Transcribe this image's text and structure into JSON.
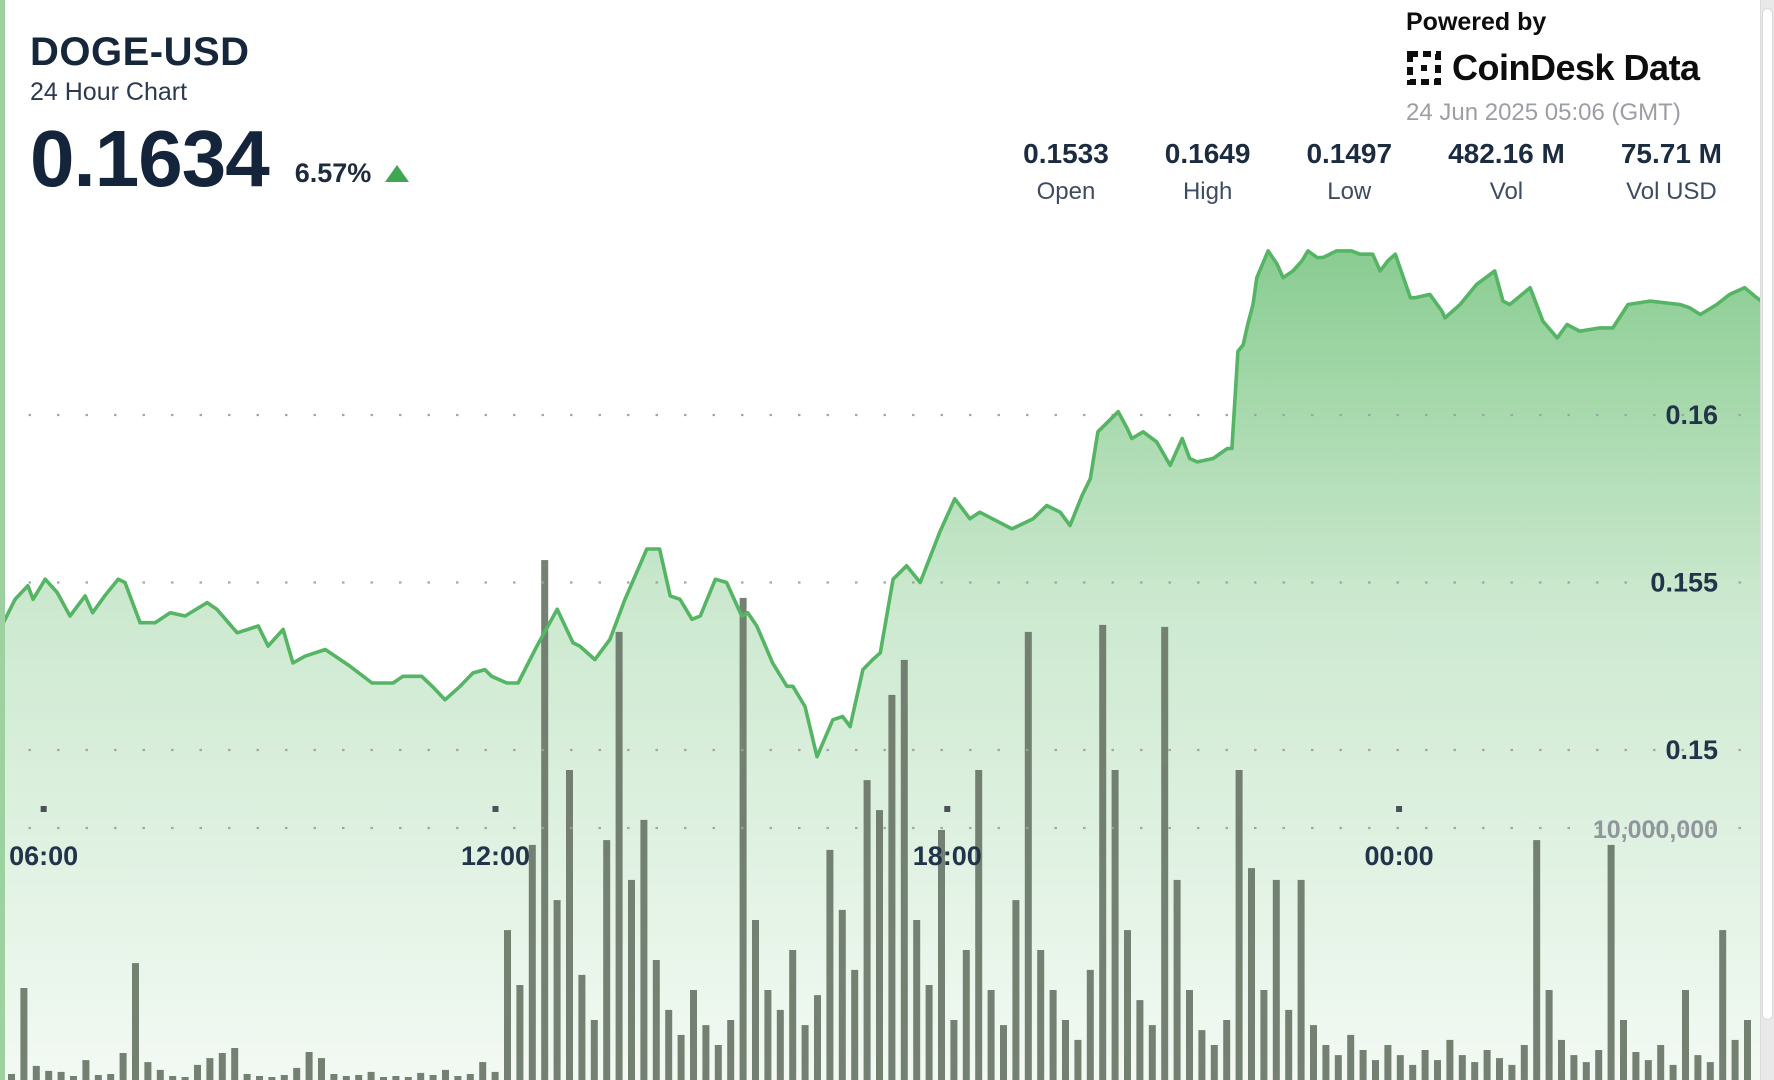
{
  "header": {
    "symbol": "DOGE-USD",
    "subtitle": "24 Hour Chart",
    "price": "0.1634",
    "change_percent": "6.57%",
    "change_direction": "up",
    "powered_by": "Powered by",
    "brand": "CoinDesk Data",
    "timestamp": "24 Jun 2025 05:06 (GMT)"
  },
  "stats": [
    {
      "value": "0.1533",
      "label": "Open"
    },
    {
      "value": "0.1649",
      "label": "High"
    },
    {
      "value": "0.1497",
      "label": "Low"
    },
    {
      "value": "482.16 M",
      "label": "Vol"
    },
    {
      "value": "75.71 M",
      "label": "Vol USD"
    }
  ],
  "colors": {
    "accent_green": "#3fa653",
    "line_green": "#55b564",
    "fill_green": "#60ba6a",
    "volume_bar": "#6e7b6c",
    "navy": "#16273c",
    "grid_gray": "#9aa0a3",
    "label_gray": "#8f979c"
  },
  "chart_data": {
    "type": "area",
    "title": "DOGE-USD 24 Hour Chart",
    "subtitle": "price (USD) with volume bars, 24 hours ending 24 Jun 2025 05:06 GMT",
    "x_unit": "hours since chart start (~05:25 GMT)",
    "x_range_hours": [
      0,
      23.5
    ],
    "price_axis": {
      "gridlines": [
        0.16,
        0.155,
        0.15
      ],
      "min": 0.1488,
      "max": 0.1655
    },
    "volume_axis": {
      "gridline_value": 10000000,
      "gridline_label": "10,000,000",
      "unit": "coins per 10-min bar"
    },
    "x_ticks": [
      {
        "label": "06:00",
        "t": 0.58
      },
      {
        "label": "12:00",
        "t": 6.58
      },
      {
        "label": "18:00",
        "t": 12.58
      },
      {
        "label": "00:00",
        "t": 18.58
      }
    ],
    "summary": {
      "open": 0.1533,
      "high": 0.1649,
      "low": 0.1497,
      "close": 0.1634,
      "vol": "482.16 M",
      "vol_usd": "75.71 M"
    },
    "price_series": [
      [
        0.0,
        0.1536
      ],
      [
        0.2,
        0.1545
      ],
      [
        0.37,
        0.1549
      ],
      [
        0.44,
        0.1545
      ],
      [
        0.6,
        0.1551
      ],
      [
        0.76,
        0.1547
      ],
      [
        0.93,
        0.154
      ],
      [
        1.13,
        0.1546
      ],
      [
        1.23,
        0.1541
      ],
      [
        1.39,
        0.1546
      ],
      [
        1.57,
        0.1551
      ],
      [
        1.66,
        0.155
      ],
      [
        1.86,
        0.1538
      ],
      [
        2.06,
        0.1538
      ],
      [
        2.26,
        0.1541
      ],
      [
        2.46,
        0.154
      ],
      [
        2.75,
        0.1544
      ],
      [
        2.88,
        0.1542
      ],
      [
        3.15,
        0.1535
      ],
      [
        3.43,
        0.1537
      ],
      [
        3.56,
        0.1531
      ],
      [
        3.76,
        0.1536
      ],
      [
        3.89,
        0.1526
      ],
      [
        4.05,
        0.1528
      ],
      [
        4.32,
        0.153
      ],
      [
        4.65,
        0.1525
      ],
      [
        4.94,
        0.152
      ],
      [
        5.22,
        0.152
      ],
      [
        5.35,
        0.1522
      ],
      [
        5.6,
        0.1522
      ],
      [
        5.74,
        0.1519
      ],
      [
        5.91,
        0.1515
      ],
      [
        6.11,
        0.1519
      ],
      [
        6.28,
        0.1523
      ],
      [
        6.44,
        0.1524
      ],
      [
        6.53,
        0.1522
      ],
      [
        6.73,
        0.152
      ],
      [
        6.88,
        0.152
      ],
      [
        7.13,
        0.1531
      ],
      [
        7.4,
        0.1542
      ],
      [
        7.61,
        0.1532
      ],
      [
        7.7,
        0.1531
      ],
      [
        7.9,
        0.1527
      ],
      [
        8.1,
        0.1533
      ],
      [
        8.3,
        0.1545
      ],
      [
        8.59,
        0.156
      ],
      [
        8.76,
        0.156
      ],
      [
        8.9,
        0.1546
      ],
      [
        9.03,
        0.1545
      ],
      [
        9.19,
        0.1539
      ],
      [
        9.3,
        0.154
      ],
      [
        9.5,
        0.1551
      ],
      [
        9.65,
        0.155
      ],
      [
        9.85,
        0.154
      ],
      [
        9.93,
        0.1541
      ],
      [
        10.05,
        0.1537
      ],
      [
        10.26,
        0.1526
      ],
      [
        10.45,
        0.1519
      ],
      [
        10.53,
        0.1519
      ],
      [
        10.69,
        0.1513
      ],
      [
        10.85,
        0.1498
      ],
      [
        11.06,
        0.1509
      ],
      [
        11.19,
        0.151
      ],
      [
        11.29,
        0.1507
      ],
      [
        11.46,
        0.1524
      ],
      [
        11.59,
        0.1527
      ],
      [
        11.69,
        0.1529
      ],
      [
        11.86,
        0.1551
      ],
      [
        12.04,
        0.1555
      ],
      [
        12.22,
        0.155
      ],
      [
        12.48,
        0.1565
      ],
      [
        12.68,
        0.1575
      ],
      [
        12.88,
        0.1569
      ],
      [
        13.01,
        0.1571
      ],
      [
        13.44,
        0.1566
      ],
      [
        13.72,
        0.1569
      ],
      [
        13.9,
        0.1573
      ],
      [
        14.08,
        0.1571
      ],
      [
        14.21,
        0.1567
      ],
      [
        14.37,
        0.1576
      ],
      [
        14.48,
        0.1581
      ],
      [
        14.58,
        0.1595
      ],
      [
        14.85,
        0.1601
      ],
      [
        14.97,
        0.1596
      ],
      [
        15.03,
        0.1593
      ],
      [
        15.18,
        0.1595
      ],
      [
        15.36,
        0.1592
      ],
      [
        15.54,
        0.1585
      ],
      [
        15.7,
        0.1593
      ],
      [
        15.8,
        0.1587
      ],
      [
        15.9,
        0.1586
      ],
      [
        16.11,
        0.1587
      ],
      [
        16.3,
        0.159
      ],
      [
        16.36,
        0.159
      ],
      [
        16.44,
        0.1619
      ],
      [
        16.51,
        0.1621
      ],
      [
        16.57,
        0.1627
      ],
      [
        16.64,
        0.1633
      ],
      [
        16.69,
        0.1641
      ],
      [
        16.84,
        0.1649
      ],
      [
        16.96,
        0.1645
      ],
      [
        17.04,
        0.1641
      ],
      [
        17.17,
        0.1643
      ],
      [
        17.29,
        0.1646
      ],
      [
        17.37,
        0.1649
      ],
      [
        17.49,
        0.1647
      ],
      [
        17.57,
        0.1647
      ],
      [
        17.75,
        0.1649
      ],
      [
        17.95,
        0.1649
      ],
      [
        18.06,
        0.1648
      ],
      [
        18.23,
        0.1648
      ],
      [
        18.33,
        0.1643
      ],
      [
        18.43,
        0.1646
      ],
      [
        18.53,
        0.1648
      ],
      [
        18.73,
        0.1635
      ],
      [
        18.79,
        0.1635
      ],
      [
        18.99,
        0.1636
      ],
      [
        19.15,
        0.1631
      ],
      [
        19.19,
        0.1629
      ],
      [
        19.39,
        0.1633
      ],
      [
        19.61,
        0.1639
      ],
      [
        19.85,
        0.1643
      ],
      [
        19.96,
        0.1634
      ],
      [
        20.05,
        0.1633
      ],
      [
        20.32,
        0.1638
      ],
      [
        20.49,
        0.1628
      ],
      [
        20.68,
        0.1623
      ],
      [
        20.81,
        0.1627
      ],
      [
        20.98,
        0.1625
      ],
      [
        21.25,
        0.1626
      ],
      [
        21.42,
        0.1626
      ],
      [
        21.62,
        0.1633
      ],
      [
        21.91,
        0.1634
      ],
      [
        22.31,
        0.1633
      ],
      [
        22.44,
        0.1632
      ],
      [
        22.58,
        0.163
      ],
      [
        22.8,
        0.1633
      ],
      [
        22.97,
        0.1636
      ],
      [
        23.17,
        0.1638
      ],
      [
        23.33,
        0.1635
      ],
      [
        23.39,
        0.1634
      ]
    ],
    "volume_series_millions": [
      0.24,
      3.65,
      0.56,
      0.36,
      0.32,
      0.16,
      0.79,
      0.2,
      0.24,
      1.07,
      4.64,
      0.71,
      0.4,
      0.16,
      0.12,
      0.6,
      0.87,
      1.07,
      1.27,
      0.24,
      0.16,
      0.12,
      0.2,
      0.48,
      1.11,
      0.87,
      0.24,
      0.16,
      0.2,
      0.32,
      0.12,
      0.16,
      0.12,
      0.28,
      0.2,
      0.4,
      0.16,
      0.24,
      0.71,
      0.32,
      5.95,
      3.77,
      9.33,
      20.63,
      7.14,
      12.3,
      4.17,
      2.38,
      9.52,
      17.78,
      7.94,
      10.32,
      4.76,
      2.78,
      1.79,
      3.57,
      2.18,
      1.39,
      2.38,
      19.13,
      6.35,
      3.57,
      2.78,
      5.16,
      2.18,
      3.37,
      9.13,
      6.75,
      4.37,
      11.9,
      10.71,
      15.28,
      16.67,
      6.35,
      3.77,
      9.92,
      2.38,
      5.16,
      12.3,
      3.57,
      2.18,
      7.14,
      17.78,
      5.16,
      3.57,
      2.38,
      1.59,
      4.37,
      18.06,
      12.3,
      5.95,
      3.17,
      2.18,
      17.98,
      7.94,
      3.57,
      1.98,
      1.39,
      2.38,
      12.3,
      8.41,
      3.57,
      7.94,
      2.78,
      7.94,
      2.18,
      1.39,
      0.99,
      1.79,
      1.19,
      0.79,
      1.39,
      0.99,
      0.6,
      1.19,
      0.79,
      1.59,
      0.99,
      0.71,
      1.19,
      0.87,
      0.6,
      1.39,
      9.52,
      3.57,
      1.59,
      0.99,
      0.71,
      1.19,
      9.33,
      2.38,
      1.11,
      0.79,
      1.39,
      0.6,
      3.57,
      0.99,
      0.71,
      5.95,
      1.59,
      2.38
    ]
  }
}
